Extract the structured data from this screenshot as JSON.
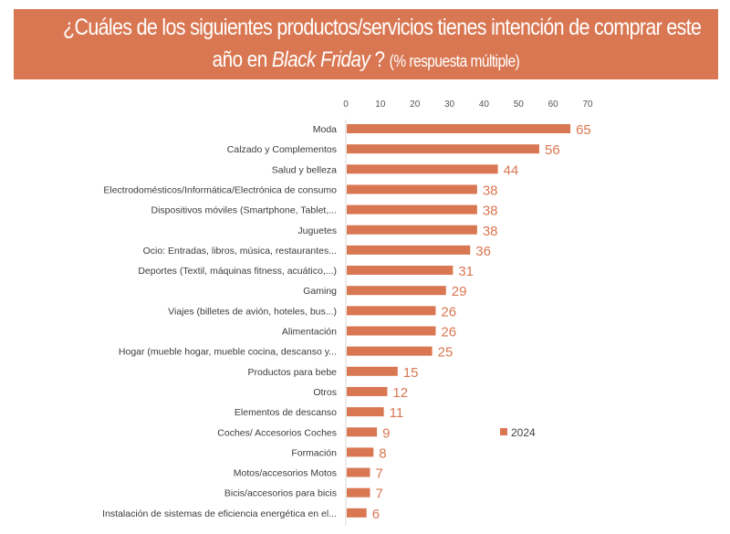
{
  "header": {
    "title_line1": "¿Cuáles de los siguientes productos/servicios tienes intención de comprar este",
    "title_line2_pre": "año en ",
    "title_line2_italic": "Black Friday",
    "title_line2_post": " ? ",
    "title_line2_small": "(% respuesta múltiple)"
  },
  "colors": {
    "banner": "#d97752",
    "bar": "#d97752"
  },
  "chart_data": {
    "type": "bar",
    "orientation": "horizontal",
    "title": "¿Cuáles de los siguientes productos/servicios tienes intención de comprar este año en Black Friday ? (% respuesta múltiple)",
    "xlabel": "",
    "ylabel": "",
    "xlim": [
      0,
      70
    ],
    "xticks": [
      "0",
      "10",
      "20",
      "30",
      "40",
      "50",
      "60",
      "70"
    ],
    "grid": false,
    "legend_position": "right",
    "categories": [
      "Moda",
      "Calzado y Complementos",
      "Salud y belleza",
      "Electrodomésticos/Informática/Electrónica de consumo",
      "Dispositivos móviles (Smartphone, Tablet,...",
      "Juguetes",
      "Ocio: Entradas, libros, música, restaurantes...",
      "Deportes (Textil, máquinas fitness, acuático,...)",
      "Gaming",
      "Viajes (billetes de avión, hoteles, bus...)",
      "Alimentación",
      "Hogar (mueble hogar, mueble cocina, descanso y...",
      "Productos para bebe",
      "Otros",
      "Elementos de descanso",
      "Coches/ Accesorios Coches",
      "Formación",
      "Motos/accesorios Motos",
      "Bicis/accesorios para bicis",
      "Instalación de sistemas de eficiencia energética en el..."
    ],
    "series": [
      {
        "name": "2024",
        "values": [
          65,
          56,
          44,
          38,
          38,
          38,
          36,
          31,
          29,
          26,
          26,
          25,
          15,
          12,
          11,
          9,
          8,
          7,
          7,
          6
        ]
      }
    ]
  }
}
